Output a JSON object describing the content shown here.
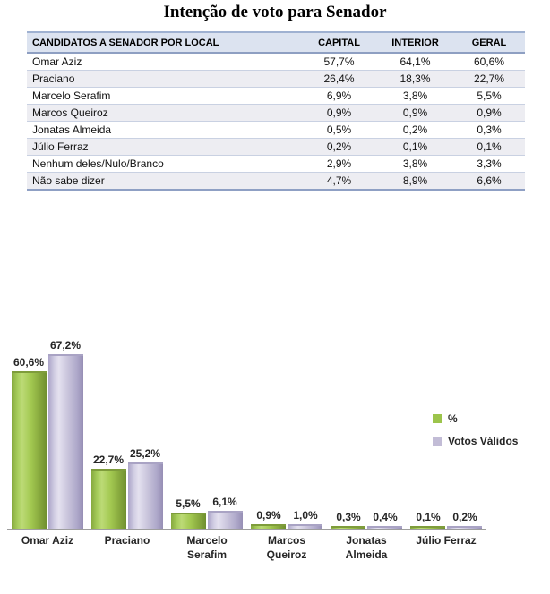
{
  "title": "Intenção de voto para Senador",
  "table": {
    "columns": [
      "CANDIDATOS A SENADOR POR LOCAL",
      "CAPITAL",
      "INTERIOR",
      "GERAL"
    ],
    "rows": [
      {
        "name": "Omar Aziz",
        "capital": "57,7%",
        "interior": "64,1%",
        "geral": "60,6%"
      },
      {
        "name": "Praciano",
        "capital": "26,4%",
        "interior": "18,3%",
        "geral": "22,7%"
      },
      {
        "name": "Marcelo Serafim",
        "capital": "6,9%",
        "interior": "3,8%",
        "geral": "5,5%"
      },
      {
        "name": "Marcos Queiroz",
        "capital": "0,9%",
        "interior": "0,9%",
        "geral": "0,9%"
      },
      {
        "name": "Jonatas Almeida",
        "capital": "0,5%",
        "interior": "0,2%",
        "geral": "0,3%"
      },
      {
        "name": "Júlio Ferraz",
        "capital": "0,2%",
        "interior": "0,1%",
        "geral": "0,1%"
      },
      {
        "name": "Nenhum deles/Nulo/Branco",
        "capital": "2,9%",
        "interior": "3,8%",
        "geral": "3,3%"
      },
      {
        "name": "Não sabe dizer",
        "capital": "4,7%",
        "interior": "8,9%",
        "geral": "6,6%"
      }
    ]
  },
  "chart_data": {
    "type": "bar",
    "categories": [
      "Omar Aziz",
      "Praciano",
      "Marcelo Serafim",
      "Marcos Queiroz",
      "Jonatas Almeida",
      "Júlio Ferraz"
    ],
    "series": [
      {
        "name": "%",
        "color": "#9cc44b",
        "values": [
          60.6,
          22.7,
          5.5,
          0.9,
          0.3,
          0.1
        ],
        "labels": [
          "60,6%",
          "22,7%",
          "5,5%",
          "0,9%",
          "0,3%",
          "0,1%"
        ]
      },
      {
        "name": "Votos Válidos",
        "color": "#c2bcd6",
        "values": [
          67.2,
          25.2,
          6.1,
          1.0,
          0.4,
          0.2
        ],
        "labels": [
          "67,2%",
          "25,2%",
          "6,1%",
          "1,0%",
          "0,4%",
          "0,2%"
        ]
      }
    ],
    "title": "",
    "xlabel": "",
    "ylabel": "",
    "ylim": [
      0,
      70
    ],
    "grid": false,
    "legend_position": "right",
    "data_labels": true
  }
}
